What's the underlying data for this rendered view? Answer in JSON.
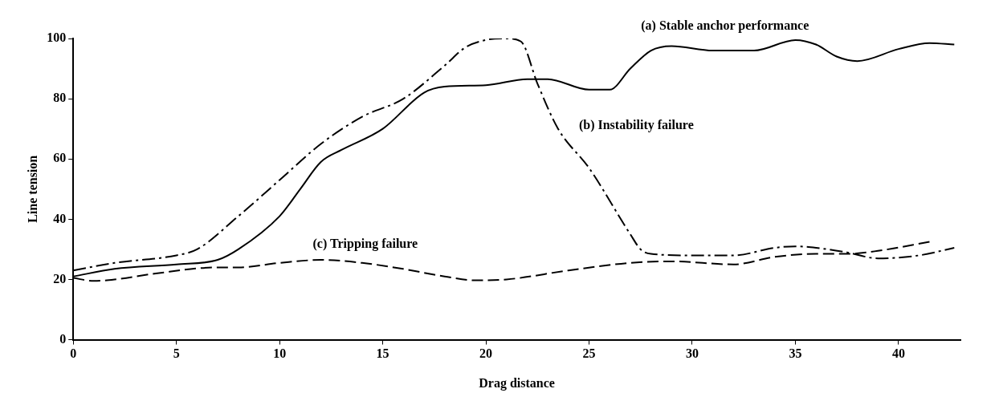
{
  "chart_data": {
    "type": "line",
    "xlabel": "Drag distance",
    "ylabel": "Line tension",
    "xlim": [
      0,
      43
    ],
    "xticks": [
      0,
      5,
      10,
      15,
      20,
      25,
      30,
      35,
      40
    ],
    "ylim": [
      0,
      100
    ],
    "yticks": [
      0,
      20,
      40,
      60,
      80,
      100
    ],
    "grid": false,
    "legend": false,
    "marker": "none",
    "series": [
      {
        "name": "(a) Stable anchor performance",
        "color": "#000000",
        "line_style": "solid",
        "x": [
          0,
          2,
          5,
          7,
          8,
          10,
          11,
          12,
          13,
          15,
          17,
          18,
          20,
          22,
          23,
          25,
          26,
          27,
          28,
          29,
          31,
          33,
          35,
          36,
          37,
          38,
          40,
          41.5,
          42.7
        ],
        "values": [
          21,
          23.5,
          25,
          26.5,
          30,
          41,
          50,
          59,
          63,
          70,
          82,
          84,
          84.5,
          86.5,
          86.5,
          83,
          83,
          90,
          96,
          97.5,
          96,
          96,
          99.5,
          98,
          94,
          92.5,
          96.5,
          98.5,
          98
        ]
      },
      {
        "name": "(b) Instability failure",
        "color": "#000000",
        "line_style": "dashdot",
        "x": [
          0,
          2,
          5,
          6,
          8,
          10,
          12,
          14,
          16,
          18,
          19,
          20,
          21,
          21.7,
          22.5,
          23.5,
          25,
          27,
          27.5,
          28,
          30,
          32,
          34,
          35,
          36,
          37.5,
          39,
          41,
          42.7
        ],
        "values": [
          23,
          25.5,
          28,
          30,
          41,
          53,
          65,
          74,
          80,
          91,
          97,
          99.5,
          100,
          99,
          85,
          70,
          57,
          35,
          30,
          28.5,
          28,
          28,
          30.5,
          31,
          30.5,
          29,
          27,
          28,
          30.5
        ]
      },
      {
        "name": "(c) Tripping failure",
        "color": "#000000",
        "line_style": "dashed",
        "x": [
          0,
          1,
          2,
          4,
          7,
          8,
          10,
          12,
          14,
          16,
          18,
          19.5,
          21,
          24,
          27,
          29,
          32,
          34,
          36,
          37.5,
          39,
          41.5
        ],
        "values": [
          20.5,
          19.5,
          20,
          22,
          24,
          24,
          25.5,
          26.5,
          25.5,
          23.5,
          21,
          19.7,
          20,
          23,
          25.5,
          26,
          25,
          27.5,
          28.5,
          28.5,
          29.5,
          32.5
        ]
      }
    ]
  }
}
